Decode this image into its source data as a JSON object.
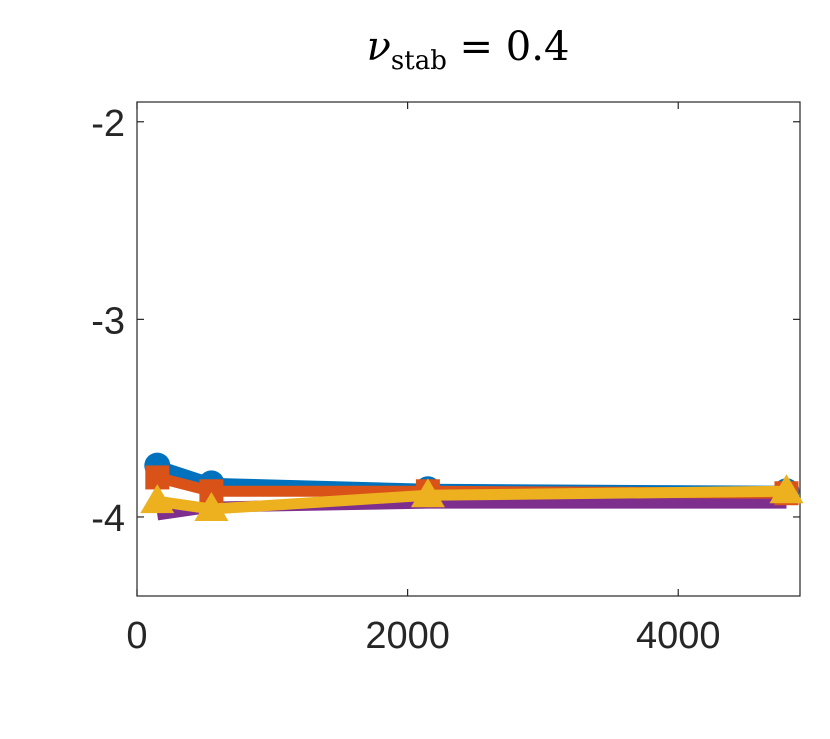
{
  "chart_data": {
    "type": "line",
    "title": {
      "symbol": "ν",
      "subscript": "stab",
      "rest": " = 0.4"
    },
    "xlabel": "",
    "ylabel": "",
    "xlim": [
      0,
      4900
    ],
    "ylim": [
      -4.4,
      -1.9
    ],
    "xticks": [
      0,
      2000,
      4000
    ],
    "xtick_labels": [
      "0",
      "2000",
      "4000"
    ],
    "yticks": [
      -2,
      -3,
      -4
    ],
    "ytick_labels": [
      "-2",
      "-3",
      "-4"
    ],
    "grid": false,
    "box": true,
    "series": [
      {
        "marker": "circle",
        "color": "#0072BD",
        "x": [
          150,
          550,
          2150,
          4800
        ],
        "y": [
          -3.74,
          -3.83,
          -3.86,
          -3.87
        ]
      },
      {
        "marker": "square",
        "color": "#D95319",
        "x": [
          150,
          550,
          2150,
          4800
        ],
        "y": [
          -3.8,
          -3.87,
          -3.87,
          -3.88
        ]
      },
      {
        "marker": "none",
        "color": "#7E2F8E",
        "x": [
          150,
          550,
          2150,
          4800
        ],
        "y": [
          -3.99,
          -3.95,
          -3.93,
          -3.93
        ]
      },
      {
        "marker": "triangle",
        "color": "#EDB120",
        "x": [
          150,
          550,
          2150,
          4800
        ],
        "y": [
          -3.92,
          -3.96,
          -3.89,
          -3.87
        ]
      }
    ]
  }
}
